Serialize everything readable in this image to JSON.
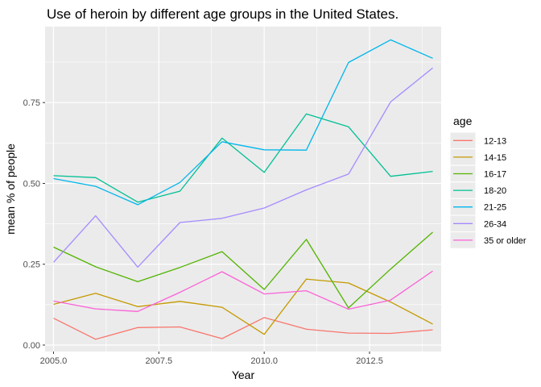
{
  "chart_data": {
    "type": "line",
    "title": "Use of heroin by different age groups in the United States.",
    "xlabel": "Year",
    "ylabel": "mean % of people",
    "xlim": [
      2004.8,
      2014.2
    ],
    "ylim": [
      -0.02,
      0.985
    ],
    "x_ticks": [
      2005.0,
      2007.5,
      2010.0,
      2012.5
    ],
    "x_tick_labels": [
      "2005.0",
      "2007.5",
      "2010.0",
      "2012.5"
    ],
    "y_ticks": [
      0.0,
      0.25,
      0.5,
      0.75
    ],
    "y_tick_labels": [
      "0.00",
      "0.25",
      "0.50",
      "0.75"
    ],
    "grid": true,
    "legend": {
      "title": "age",
      "placement": "right"
    },
    "x": [
      2005,
      2006,
      2007,
      2008,
      2009,
      2010,
      2011,
      2012,
      2013,
      2014
    ],
    "series": [
      {
        "name": "12-13",
        "color": "#F8766D",
        "values": [
          0.083,
          0.018,
          0.054,
          0.056,
          0.02,
          0.085,
          0.049,
          0.037,
          0.036,
          0.047
        ]
      },
      {
        "name": "14-15",
        "color": "#C49A00",
        "values": [
          0.126,
          0.16,
          0.119,
          0.135,
          0.117,
          0.033,
          0.204,
          0.192,
          0.133,
          0.065
        ]
      },
      {
        "name": "16-17",
        "color": "#53B400",
        "values": [
          0.303,
          0.242,
          0.196,
          0.24,
          0.289,
          0.172,
          0.327,
          0.115,
          0.235,
          0.349
        ]
      },
      {
        "name": "18-20",
        "color": "#00C094",
        "values": [
          0.524,
          0.518,
          0.442,
          0.476,
          0.64,
          0.534,
          0.715,
          0.675,
          0.522,
          0.537
        ]
      },
      {
        "name": "21-25",
        "color": "#00B6EB",
        "values": [
          0.515,
          0.491,
          0.434,
          0.503,
          0.629,
          0.604,
          0.603,
          0.874,
          0.944,
          0.887
        ]
      },
      {
        "name": "26-34",
        "color": "#A58AFF",
        "values": [
          0.256,
          0.4,
          0.241,
          0.379,
          0.392,
          0.424,
          0.48,
          0.529,
          0.752,
          0.857
        ]
      },
      {
        "name": "35 or older",
        "color": "#FB61D7",
        "values": [
          0.136,
          0.112,
          0.104,
          0.163,
          0.227,
          0.158,
          0.168,
          0.111,
          0.139,
          0.229
        ]
      }
    ]
  }
}
